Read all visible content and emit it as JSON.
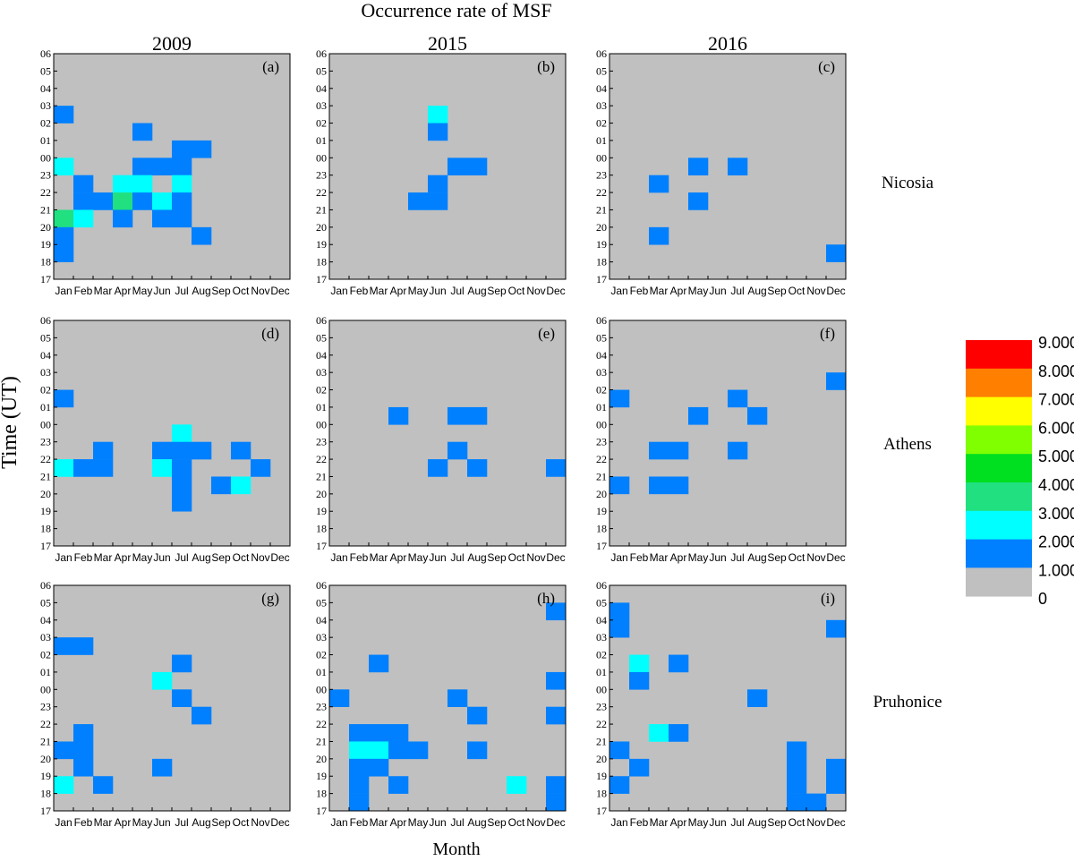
{
  "chart_data": {
    "type": "heatmap",
    "title": "Occurrence rate of MSF",
    "xlabel": "Month",
    "ylabel": "Time (UT)",
    "months": [
      "Jan",
      "Feb",
      "Mar",
      "Apr",
      "May",
      "Jun",
      "Jul",
      "Aug",
      "Sep",
      "Oct",
      "Nov",
      "Dec"
    ],
    "hours": [
      "17",
      "18",
      "19",
      "20",
      "21",
      "22",
      "23",
      "00",
      "01",
      "02",
      "03",
      "04",
      "05",
      "06"
    ],
    "years": [
      "2009",
      "2015",
      "2016"
    ],
    "stations": [
      "Nicosia",
      "Athens",
      "Pruhonice"
    ],
    "colorbar": {
      "levels": [
        {
          "label": "9.000",
          "color": "#ff0000"
        },
        {
          "label": "8.000",
          "color": "#ff7f00"
        },
        {
          "label": "7.000",
          "color": "#ffff00"
        },
        {
          "label": "6.000",
          "color": "#80ff00"
        },
        {
          "label": "5.000",
          "color": "#00df20"
        },
        {
          "label": "4.000",
          "color": "#20e080"
        },
        {
          "label": "3.000",
          "color": "#00ffff"
        },
        {
          "label": "2.000",
          "color": "#0080ff"
        },
        {
          "label": "1.000",
          "color": "#c0c0c0"
        },
        {
          "label": "0",
          "color": ""
        }
      ]
    },
    "panels": [
      {
        "label": "(a)",
        "station": "Nicosia",
        "year": "2009",
        "cells": [
          {
            "month": "Jan",
            "hour": "02",
            "value": 1
          },
          {
            "month": "May",
            "hour": "01",
            "value": 1
          },
          {
            "month": "Jul",
            "hour": "00",
            "value": 1
          },
          {
            "month": "Aug",
            "hour": "00",
            "value": 1
          },
          {
            "month": "Jan",
            "hour": "23",
            "value": 2
          },
          {
            "month": "May",
            "hour": "23",
            "value": 1
          },
          {
            "month": "Jun",
            "hour": "23",
            "value": 1
          },
          {
            "month": "Jul",
            "hour": "23",
            "value": 1
          },
          {
            "month": "Feb",
            "hour": "22",
            "value": 1
          },
          {
            "month": "Apr",
            "hour": "22",
            "value": 2
          },
          {
            "month": "May",
            "hour": "22",
            "value": 2
          },
          {
            "month": "Jul",
            "hour": "22",
            "value": 2
          },
          {
            "month": "Feb",
            "hour": "21",
            "value": 1
          },
          {
            "month": "Mar",
            "hour": "21",
            "value": 1
          },
          {
            "month": "Apr",
            "hour": "21",
            "value": 3
          },
          {
            "month": "May",
            "hour": "21",
            "value": 1
          },
          {
            "month": "Jun",
            "hour": "21",
            "value": 2
          },
          {
            "month": "Jul",
            "hour": "21",
            "value": 1
          },
          {
            "month": "Jan",
            "hour": "20",
            "value": 3
          },
          {
            "month": "Feb",
            "hour": "20",
            "value": 2
          },
          {
            "month": "Apr",
            "hour": "20",
            "value": 1
          },
          {
            "month": "Jun",
            "hour": "20",
            "value": 1
          },
          {
            "month": "Jul",
            "hour": "20",
            "value": 1
          },
          {
            "month": "Jan",
            "hour": "19",
            "value": 1
          },
          {
            "month": "Aug",
            "hour": "19",
            "value": 1
          },
          {
            "month": "Jan",
            "hour": "18",
            "value": 1
          }
        ]
      },
      {
        "label": "(b)",
        "station": "Nicosia",
        "year": "2015",
        "cells": [
          {
            "month": "Jun",
            "hour": "02",
            "value": 2
          },
          {
            "month": "Jun",
            "hour": "01",
            "value": 1
          },
          {
            "month": "Jul",
            "hour": "23",
            "value": 1
          },
          {
            "month": "Aug",
            "hour": "23",
            "value": 1
          },
          {
            "month": "Jun",
            "hour": "22",
            "value": 1
          },
          {
            "month": "May",
            "hour": "21",
            "value": 1
          },
          {
            "month": "Jun",
            "hour": "21",
            "value": 1
          }
        ]
      },
      {
        "label": "(c)",
        "station": "Nicosia",
        "year": "2016",
        "cells": [
          {
            "month": "May",
            "hour": "23",
            "value": 1
          },
          {
            "month": "Jul",
            "hour": "23",
            "value": 1
          },
          {
            "month": "Mar",
            "hour": "22",
            "value": 1
          },
          {
            "month": "May",
            "hour": "21",
            "value": 1
          },
          {
            "month": "Mar",
            "hour": "19",
            "value": 1
          },
          {
            "month": "Dec",
            "hour": "18",
            "value": 1
          }
        ]
      },
      {
        "label": "(d)",
        "station": "Athens",
        "year": "2009",
        "cells": [
          {
            "month": "Jan",
            "hour": "01",
            "value": 1
          },
          {
            "month": "Jul",
            "hour": "23",
            "value": 2
          },
          {
            "month": "Mar",
            "hour": "22",
            "value": 1
          },
          {
            "month": "Jun",
            "hour": "22",
            "value": 1
          },
          {
            "month": "Jul",
            "hour": "22",
            "value": 1
          },
          {
            "month": "Aug",
            "hour": "22",
            "value": 1
          },
          {
            "month": "Oct",
            "hour": "22",
            "value": 1
          },
          {
            "month": "Jan",
            "hour": "21",
            "value": 2
          },
          {
            "month": "Feb",
            "hour": "21",
            "value": 1
          },
          {
            "month": "Mar",
            "hour": "21",
            "value": 1
          },
          {
            "month": "Jun",
            "hour": "21",
            "value": 2
          },
          {
            "month": "Jul",
            "hour": "21",
            "value": 1
          },
          {
            "month": "Nov",
            "hour": "21",
            "value": 1
          },
          {
            "month": "Jul",
            "hour": "20",
            "value": 1
          },
          {
            "month": "Sep",
            "hour": "20",
            "value": 1
          },
          {
            "month": "Oct",
            "hour": "20",
            "value": 2
          },
          {
            "month": "Jul",
            "hour": "19",
            "value": 1
          }
        ]
      },
      {
        "label": "(e)",
        "station": "Athens",
        "year": "2015",
        "cells": [
          {
            "month": "Apr",
            "hour": "00",
            "value": 1
          },
          {
            "month": "Jul",
            "hour": "00",
            "value": 1
          },
          {
            "month": "Aug",
            "hour": "00",
            "value": 1
          },
          {
            "month": "Jul",
            "hour": "22",
            "value": 1
          },
          {
            "month": "Jun",
            "hour": "21",
            "value": 1
          },
          {
            "month": "Aug",
            "hour": "21",
            "value": 1
          },
          {
            "month": "Dec",
            "hour": "21",
            "value": 1
          }
        ]
      },
      {
        "label": "(f)",
        "station": "Athens",
        "year": "2016",
        "cells": [
          {
            "month": "Dec",
            "hour": "02",
            "value": 1
          },
          {
            "month": "Jan",
            "hour": "01",
            "value": 1
          },
          {
            "month": "Jul",
            "hour": "01",
            "value": 1
          },
          {
            "month": "May",
            "hour": "00",
            "value": 1
          },
          {
            "month": "Aug",
            "hour": "00",
            "value": 1
          },
          {
            "month": "Mar",
            "hour": "22",
            "value": 1
          },
          {
            "month": "Apr",
            "hour": "22",
            "value": 1
          },
          {
            "month": "Jul",
            "hour": "22",
            "value": 1
          },
          {
            "month": "Jan",
            "hour": "20",
            "value": 1
          },
          {
            "month": "Mar",
            "hour": "20",
            "value": 1
          },
          {
            "month": "Apr",
            "hour": "20",
            "value": 1
          }
        ]
      },
      {
        "label": "(g)",
        "station": "Pruhonice",
        "year": "2009",
        "cells": [
          {
            "month": "Jan",
            "hour": "02",
            "value": 1
          },
          {
            "month": "Feb",
            "hour": "02",
            "value": 1
          },
          {
            "month": "Jul",
            "hour": "01",
            "value": 1
          },
          {
            "month": "Jun",
            "hour": "00",
            "value": 2
          },
          {
            "month": "Jul",
            "hour": "23",
            "value": 1
          },
          {
            "month": "Aug",
            "hour": "22",
            "value": 1
          },
          {
            "month": "Feb",
            "hour": "21",
            "value": 1
          },
          {
            "month": "Jan",
            "hour": "20",
            "value": 1
          },
          {
            "month": "Feb",
            "hour": "20",
            "value": 1
          },
          {
            "month": "Feb",
            "hour": "19",
            "value": 1
          },
          {
            "month": "Jun",
            "hour": "19",
            "value": 1
          },
          {
            "month": "Jan",
            "hour": "18",
            "value": 2
          },
          {
            "month": "Mar",
            "hour": "18",
            "value": 1
          }
        ]
      },
      {
        "label": "(h)",
        "station": "Pruhonice",
        "year": "2015",
        "cells": [
          {
            "month": "Dec",
            "hour": "04",
            "value": 1
          },
          {
            "month": "Mar",
            "hour": "01",
            "value": 1
          },
          {
            "month": "Dec",
            "hour": "00",
            "value": 1
          },
          {
            "month": "Jan",
            "hour": "23",
            "value": 1
          },
          {
            "month": "Jul",
            "hour": "23",
            "value": 1
          },
          {
            "month": "Aug",
            "hour": "22",
            "value": 1
          },
          {
            "month": "Dec",
            "hour": "22",
            "value": 1
          },
          {
            "month": "Feb",
            "hour": "21",
            "value": 1
          },
          {
            "month": "Mar",
            "hour": "21",
            "value": 1
          },
          {
            "month": "Apr",
            "hour": "21",
            "value": 1
          },
          {
            "month": "Feb",
            "hour": "20",
            "value": 2
          },
          {
            "month": "Mar",
            "hour": "20",
            "value": 2
          },
          {
            "month": "Apr",
            "hour": "20",
            "value": 1
          },
          {
            "month": "May",
            "hour": "20",
            "value": 1
          },
          {
            "month": "Aug",
            "hour": "20",
            "value": 1
          },
          {
            "month": "Feb",
            "hour": "19",
            "value": 1
          },
          {
            "month": "Mar",
            "hour": "19",
            "value": 1
          },
          {
            "month": "Feb",
            "hour": "18",
            "value": 1
          },
          {
            "month": "Apr",
            "hour": "18",
            "value": 1
          },
          {
            "month": "Oct",
            "hour": "18",
            "value": 2
          },
          {
            "month": "Dec",
            "hour": "18",
            "value": 1
          },
          {
            "month": "Feb",
            "hour": "17",
            "value": 1
          },
          {
            "month": "Dec",
            "hour": "17",
            "value": 1
          }
        ]
      },
      {
        "label": "(i)",
        "station": "Pruhonice",
        "year": "2016",
        "cells": [
          {
            "month": "Jan",
            "hour": "04",
            "value": 1
          },
          {
            "month": "Jan",
            "hour": "03",
            "value": 1
          },
          {
            "month": "Dec",
            "hour": "03",
            "value": 1
          },
          {
            "month": "Feb",
            "hour": "01",
            "value": 2
          },
          {
            "month": "Apr",
            "hour": "01",
            "value": 1
          },
          {
            "month": "Feb",
            "hour": "00",
            "value": 1
          },
          {
            "month": "Aug",
            "hour": "23",
            "value": 1
          },
          {
            "month": "Mar",
            "hour": "21",
            "value": 2
          },
          {
            "month": "Apr",
            "hour": "21",
            "value": 1
          },
          {
            "month": "Jan",
            "hour": "20",
            "value": 1
          },
          {
            "month": "Oct",
            "hour": "20",
            "value": 1
          },
          {
            "month": "Feb",
            "hour": "19",
            "value": 1
          },
          {
            "month": "Oct",
            "hour": "19",
            "value": 1
          },
          {
            "month": "Dec",
            "hour": "19",
            "value": 1
          },
          {
            "month": "Jan",
            "hour": "18",
            "value": 1
          },
          {
            "month": "Oct",
            "hour": "18",
            "value": 1
          },
          {
            "month": "Dec",
            "hour": "18",
            "value": 1
          },
          {
            "month": "Oct",
            "hour": "17",
            "value": 1
          },
          {
            "month": "Nov",
            "hour": "17",
            "value": 1
          }
        ]
      }
    ]
  }
}
